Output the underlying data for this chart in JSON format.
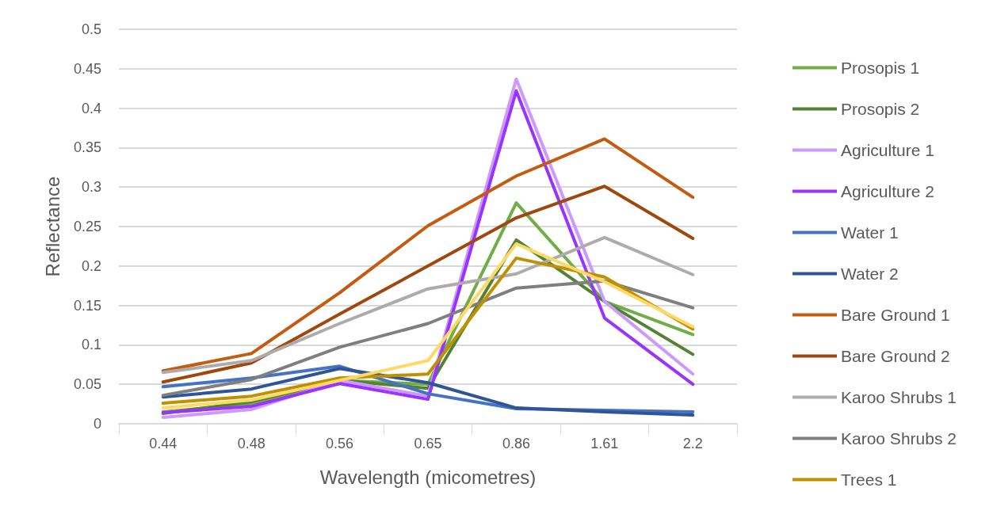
{
  "chart_data": {
    "type": "line",
    "xlabel": "Wavelength (micometres)",
    "ylabel": "Reflectance",
    "categories": [
      "0.44",
      "0.48",
      "0.56",
      "0.65",
      "0.86",
      "1.61",
      "2.2"
    ],
    "ylim": [
      0,
      0.5
    ],
    "yticks": [
      0,
      0.05,
      0.1,
      0.15,
      0.2,
      0.25,
      0.3,
      0.35,
      0.4,
      0.45,
      0.5
    ],
    "grid": "y",
    "legend": "right",
    "marker": "none",
    "line_style": "solid",
    "series": [
      {
        "name": "Prosopis 1",
        "color": "#70ad47",
        "values": [
          0.015,
          0.025,
          0.055,
          0.05,
          0.28,
          0.155,
          0.113
        ]
      },
      {
        "name": "Prosopis 2",
        "color": "#548235",
        "values": [
          0.013,
          0.028,
          0.055,
          0.045,
          0.233,
          0.155,
          0.088
        ]
      },
      {
        "name": "Agriculture 1",
        "color": "#cc99ff",
        "values": [
          0.008,
          0.018,
          0.055,
          0.035,
          0.437,
          0.155,
          0.063
        ]
      },
      {
        "name": "Agriculture 2",
        "color": "#9933ff",
        "values": [
          0.014,
          0.022,
          0.051,
          0.031,
          0.422,
          0.134,
          0.05
        ]
      },
      {
        "name": "Water 1",
        "color": "#4472c4",
        "values": [
          0.047,
          0.058,
          0.073,
          0.038,
          0.019,
          0.017,
          0.015
        ]
      },
      {
        "name": "Water 2",
        "color": "#2f5597",
        "values": [
          0.034,
          0.044,
          0.07,
          0.052,
          0.02,
          0.015,
          0.011
        ]
      },
      {
        "name": "Bare Ground 1",
        "color": "#c55a11",
        "values": [
          0.067,
          0.089,
          0.166,
          0.251,
          0.314,
          0.361,
          0.287
        ]
      },
      {
        "name": "Bare Ground 2",
        "color": "#9e480e",
        "values": [
          0.053,
          0.077,
          0.139,
          0.2,
          0.261,
          0.301,
          0.235
        ]
      },
      {
        "name": "Karoo Shrubs 1",
        "color": "#afabab",
        "values": [
          0.065,
          0.08,
          0.127,
          0.171,
          0.19,
          0.236,
          0.189
        ]
      },
      {
        "name": "Karoo Shrubs 2",
        "color": "#7f7f7f",
        "values": [
          0.036,
          0.056,
          0.097,
          0.127,
          0.172,
          0.181,
          0.147
        ]
      },
      {
        "name": "Trees 1",
        "color": "#bf9000",
        "values": [
          0.026,
          0.035,
          0.058,
          0.063,
          0.21,
          0.186,
          0.12
        ]
      },
      {
        "color": "#ffd966",
        "values": [
          0.02,
          0.03,
          0.055,
          0.08,
          0.228,
          0.18,
          0.123
        ]
      }
    ]
  }
}
